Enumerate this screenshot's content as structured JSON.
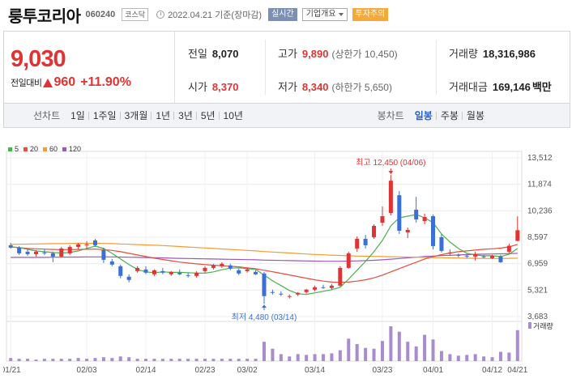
{
  "header": {
    "name": "룽투코리아",
    "code": "060240",
    "market": "코스닥",
    "date": "2022.04.21 기준(장마감)",
    "realtime": "실시간",
    "company_info": "기업개요",
    "warning": "투자주의"
  },
  "price": {
    "current": "9,030",
    "change_label": "전일대비",
    "change": "960",
    "change_pct": "+11.90%",
    "prev_close_label": "전일",
    "prev_close": "8,070",
    "open_label": "시가",
    "open": "8,370",
    "high_label": "고가",
    "high": "9,890",
    "upper_limit": "(상한가 10,450)",
    "low_label": "저가",
    "low": "8,340",
    "lower_limit": "(하한가 5,650)",
    "volume_label": "거래량",
    "volume": "18,316,986",
    "amount_label": "거래대금",
    "amount": "169,146",
    "amount_unit": "백만"
  },
  "tabs": {
    "line_label": "선차트",
    "periods": [
      "1일",
      "1주일",
      "3개월",
      "1년",
      "3년",
      "5년",
      "10년"
    ],
    "candle_label": "봉차트",
    "candles": [
      "일봉",
      "주봉",
      "월봉"
    ],
    "active_candle": "일봉"
  },
  "colors": {
    "up": "#e03333",
    "down": "#3a6fd8",
    "ma5": "#4caf50",
    "ma20": "#e74c3c",
    "ma60": "#f39c33",
    "ma120": "#9b59b6",
    "volume": "#a98bd0"
  },
  "chart_data": {
    "type": "candlestick",
    "legend": [
      {
        "name": "5",
        "color": "#4caf50"
      },
      {
        "name": "20",
        "color": "#e74c3c"
      },
      {
        "name": "60",
        "color": "#f39c33"
      },
      {
        "name": "120",
        "color": "#9b59b6"
      }
    ],
    "y_ticks": [
      "13,512",
      "11,874",
      "10,236",
      "8,597",
      "6,959",
      "5,321",
      "3,683"
    ],
    "ylim": [
      3683,
      13512
    ],
    "x_ticks": [
      "01/21",
      "02/03",
      "02/14",
      "02/23",
      "03/02",
      "03/14",
      "03/23",
      "04/01",
      "04/12",
      "04/21"
    ],
    "max_annotation": "최고 12,450 (04/06)",
    "min_annotation": "최저 4,480 (03/14)",
    "volume_label": "거래량",
    "candles": [
      {
        "o": 8100,
        "h": 8250,
        "l": 7900,
        "c": 7950
      },
      {
        "o": 7950,
        "h": 8050,
        "l": 7500,
        "c": 7600
      },
      {
        "o": 7700,
        "h": 7900,
        "l": 7450,
        "c": 7550
      },
      {
        "o": 7550,
        "h": 7800,
        "l": 7400,
        "c": 7700
      },
      {
        "o": 7650,
        "h": 7850,
        "l": 7500,
        "c": 7600
      },
      {
        "o": 7600,
        "h": 7700,
        "l": 7050,
        "c": 7400
      },
      {
        "o": 7400,
        "h": 8000,
        "l": 7350,
        "c": 7900
      },
      {
        "o": 7600,
        "h": 8100,
        "l": 7500,
        "c": 8000
      },
      {
        "o": 8000,
        "h": 8250,
        "l": 7850,
        "c": 8150
      },
      {
        "o": 8100,
        "h": 8350,
        "l": 7900,
        "c": 8150
      },
      {
        "o": 8400,
        "h": 8500,
        "l": 8000,
        "c": 8100
      },
      {
        "o": 7800,
        "h": 7950,
        "l": 7000,
        "c": 7200
      },
      {
        "o": 7100,
        "h": 7250,
        "l": 6800,
        "c": 6900
      },
      {
        "o": 6800,
        "h": 6900,
        "l": 6050,
        "c": 6200
      },
      {
        "o": 6150,
        "h": 6300,
        "l": 5800,
        "c": 5950
      },
      {
        "o": 6500,
        "h": 6800,
        "l": 6400,
        "c": 6700
      },
      {
        "o": 6600,
        "h": 6800,
        "l": 6300,
        "c": 6400
      },
      {
        "o": 6300,
        "h": 6600,
        "l": 6200,
        "c": 6550
      },
      {
        "o": 6500,
        "h": 6700,
        "l": 6300,
        "c": 6400
      },
      {
        "o": 6300,
        "h": 6500,
        "l": 6200,
        "c": 6450
      },
      {
        "o": 6400,
        "h": 6600,
        "l": 6250,
        "c": 6300
      },
      {
        "o": 6250,
        "h": 6400,
        "l": 6100,
        "c": 6200
      },
      {
        "o": 6200,
        "h": 6500,
        "l": 6100,
        "c": 6400
      },
      {
        "o": 6500,
        "h": 6800,
        "l": 6400,
        "c": 6700
      },
      {
        "o": 6700,
        "h": 6950,
        "l": 6600,
        "c": 6850
      },
      {
        "o": 6800,
        "h": 7050,
        "l": 6700,
        "c": 6950
      },
      {
        "o": 6850,
        "h": 6950,
        "l": 6550,
        "c": 6650
      },
      {
        "o": 6550,
        "h": 6650,
        "l": 6250,
        "c": 6350
      },
      {
        "o": 6500,
        "h": 6700,
        "l": 6400,
        "c": 6600
      },
      {
        "o": 6450,
        "h": 6550,
        "l": 6250,
        "c": 6300
      },
      {
        "o": 6350,
        "h": 6450,
        "l": 4480,
        "c": 4950
      },
      {
        "o": 5200,
        "h": 5350,
        "l": 5050,
        "c": 5150
      },
      {
        "o": 5100,
        "h": 5250,
        "l": 4950,
        "c": 5050
      },
      {
        "o": 4900,
        "h": 5050,
        "l": 4800,
        "c": 4950
      },
      {
        "o": 5050,
        "h": 5200,
        "l": 4950,
        "c": 5150
      },
      {
        "o": 5200,
        "h": 5400,
        "l": 5100,
        "c": 5350
      },
      {
        "o": 5350,
        "h": 5600,
        "l": 5250,
        "c": 5500
      },
      {
        "o": 5500,
        "h": 5650,
        "l": 5400,
        "c": 5450
      },
      {
        "o": 5450,
        "h": 5700,
        "l": 5350,
        "c": 5600
      },
      {
        "o": 5600,
        "h": 6800,
        "l": 5550,
        "c": 6700
      },
      {
        "o": 6700,
        "h": 7700,
        "l": 6650,
        "c": 7600
      },
      {
        "o": 7900,
        "h": 8650,
        "l": 7700,
        "c": 8500
      },
      {
        "o": 8500,
        "h": 8750,
        "l": 7900,
        "c": 8100
      },
      {
        "o": 8600,
        "h": 9400,
        "l": 8500,
        "c": 9300
      },
      {
        "o": 9500,
        "h": 10500,
        "l": 9300,
        "c": 9900
      },
      {
        "o": 10100,
        "h": 12450,
        "l": 9950,
        "c": 12100
      },
      {
        "o": 11200,
        "h": 11450,
        "l": 8800,
        "c": 9000
      },
      {
        "o": 8900,
        "h": 9200,
        "l": 8550,
        "c": 9050
      },
      {
        "o": 10300,
        "h": 11100,
        "l": 9500,
        "c": 9700
      },
      {
        "o": 9600,
        "h": 10050,
        "l": 9400,
        "c": 9850
      },
      {
        "o": 9900,
        "h": 10000,
        "l": 7850,
        "c": 8050
      },
      {
        "o": 8600,
        "h": 8800,
        "l": 7650,
        "c": 7750
      },
      {
        "o": 7650,
        "h": 7850,
        "l": 7450,
        "c": 7650
      },
      {
        "o": 7500,
        "h": 7600,
        "l": 7350,
        "c": 7450
      },
      {
        "o": 7450,
        "h": 7550,
        "l": 7300,
        "c": 7400
      },
      {
        "o": 7400,
        "h": 7700,
        "l": 7150,
        "c": 7550
      },
      {
        "o": 7400,
        "h": 7500,
        "l": 7300,
        "c": 7350
      },
      {
        "o": 7300,
        "h": 7500,
        "l": 7250,
        "c": 7450
      },
      {
        "o": 7400,
        "h": 7500,
        "l": 7000,
        "c": 7050
      },
      {
        "o": 7700,
        "h": 8200,
        "l": 7600,
        "c": 8070
      },
      {
        "o": 8370,
        "h": 9890,
        "l": 8340,
        "c": 9030
      }
    ],
    "volumes": [
      4,
      3,
      3,
      2,
      3,
      3,
      3,
      3,
      4,
      3,
      4,
      5,
      4,
      6,
      5,
      3,
      3,
      3,
      3,
      3,
      3,
      3,
      3,
      3,
      3,
      3,
      3,
      3,
      3,
      3,
      25,
      16,
      9,
      6,
      9,
      8,
      9,
      9,
      10,
      14,
      29,
      22,
      17,
      16,
      26,
      45,
      38,
      25,
      19,
      34,
      28,
      13,
      9,
      7,
      8,
      9,
      6,
      5,
      12,
      11,
      40
    ],
    "ma5": [
      8000,
      7950,
      7850,
      7750,
      7700,
      7650,
      7620,
      7650,
      7750,
      7900,
      8050,
      7900,
      7600,
      7250,
      6900,
      6600,
      6450,
      6400,
      6450,
      6420,
      6420,
      6400,
      6370,
      6370,
      6450,
      6580,
      6680,
      6700,
      6650,
      6600,
      6250,
      5900,
      5600,
      5300,
      5100,
      5050,
      5150,
      5250,
      5350,
      5500,
      6000,
      6550,
      7100,
      7700,
      8400,
      9300,
      9800,
      9900,
      10000,
      9800,
      9500,
      8800,
      8300,
      7900,
      7600,
      7500,
      7450,
      7450,
      7400,
      7550,
      7900
    ],
    "ma20": [
      8000,
      7950,
      7900,
      7880,
      7860,
      7840,
      7830,
      7830,
      7840,
      7850,
      7860,
      7830,
      7780,
      7700,
      7600,
      7500,
      7400,
      7300,
      7220,
      7140,
      7060,
      7000,
      6950,
      6900,
      6860,
      6830,
      6800,
      6760,
      6700,
      6640,
      6550,
      6460,
      6360,
      6260,
      6160,
      6060,
      5960,
      5880,
      5820,
      5800,
      5820,
      5880,
      5960,
      6080,
      6250,
      6450,
      6650,
      6850,
      7050,
      7250,
      7400,
      7520,
      7620,
      7700,
      7750,
      7800,
      7850,
      7880,
      7920,
      8000,
      8150
    ],
    "ma60": [
      8150,
      8160,
      8170,
      8180,
      8190,
      8200,
      8200,
      8210,
      8220,
      8220,
      8220,
      8210,
      8200,
      8180,
      8160,
      8140,
      8120,
      8100,
      8080,
      8050,
      8020,
      7990,
      7960,
      7930,
      7900,
      7870,
      7840,
      7810,
      7780,
      7750,
      7710,
      7680,
      7650,
      7620,
      7590,
      7560,
      7530,
      7510,
      7490,
      7470,
      7450,
      7430,
      7420,
      7410,
      7400,
      7390,
      7380,
      7370,
      7360,
      7350,
      7340,
      7330,
      7320,
      7310,
      7300,
      7290,
      7280,
      7280,
      7280,
      7290,
      7300
    ],
    "ma120": [
      7350,
      7350,
      7350,
      7350,
      7350,
      7360,
      7360,
      7370,
      7370,
      7380,
      7380,
      7380,
      7380,
      7370,
      7360,
      7350,
      7340,
      7330,
      7320,
      7300,
      7290,
      7280,
      7270,
      7260,
      7250,
      7240,
      7230,
      7220,
      7210,
      7200,
      7180,
      7170,
      7160,
      7150,
      7140,
      7130,
      7120,
      7110,
      7110,
      7110,
      7120,
      7130,
      7150,
      7170,
      7200,
      7240,
      7280,
      7320,
      7360,
      7400,
      7430,
      7460,
      7480,
      7500,
      7520,
      7540,
      7550,
      7560,
      7570,
      7580,
      7600
    ]
  }
}
